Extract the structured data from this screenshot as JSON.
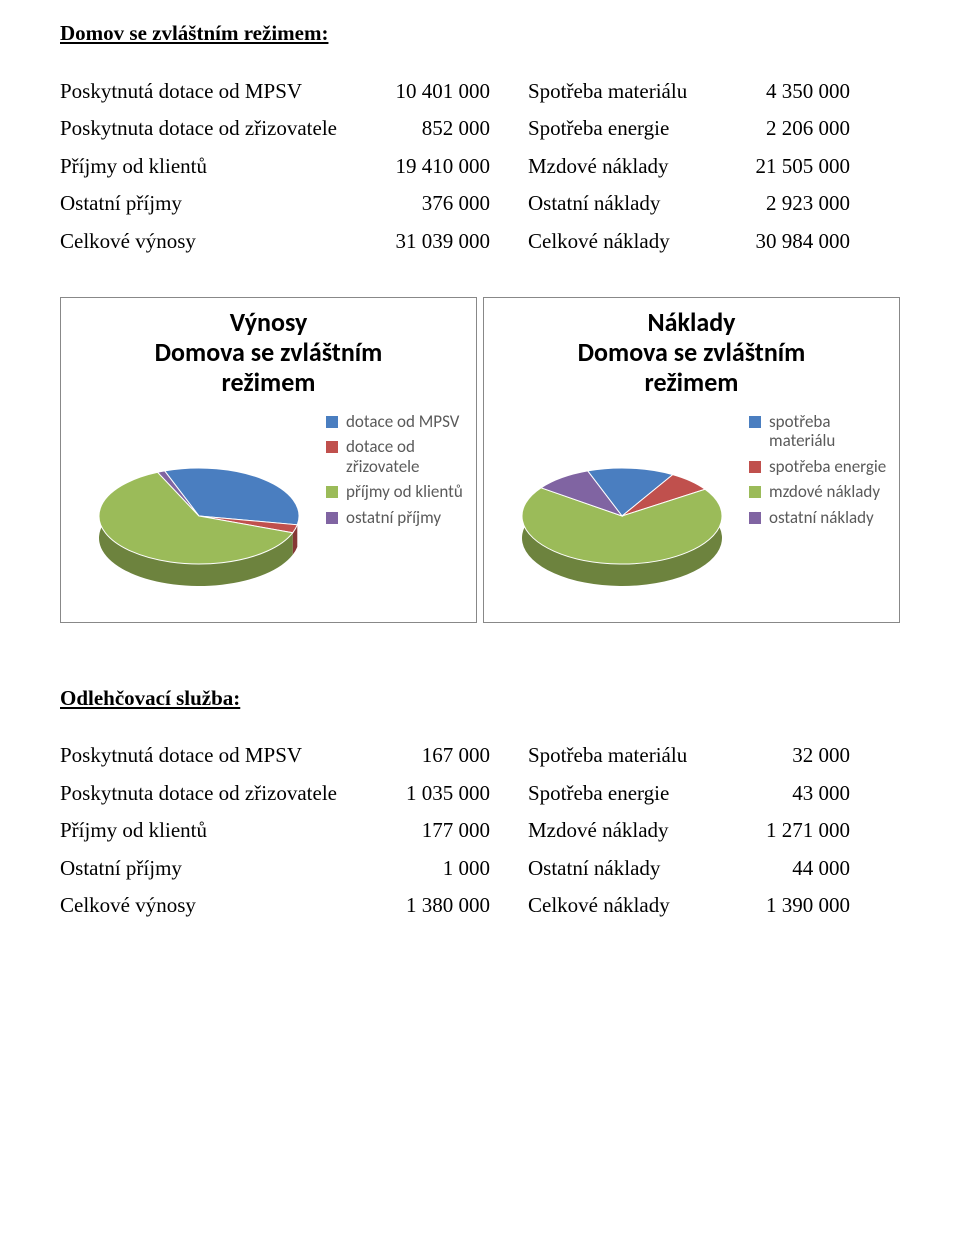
{
  "palette": {
    "blue": "#4a7ec0",
    "red": "#c0504d",
    "green": "#9bbb59",
    "purple": "#8064a2"
  },
  "section1": {
    "title": "Domov se zvláštním režimem:",
    "rows": [
      {
        "la": "Poskytnutá dotace od MPSV",
        "lb": "10 401 000",
        "sep": "",
        "ra": "Spotřeba materiálu",
        "rb": "4 350 000"
      },
      {
        "la": "Poskytnuta dotace od zřizovatele",
        "lb": "852 000",
        "sep": "",
        "ra": "Spotřeba energie",
        "rb": "2 206 000"
      },
      {
        "la": "Příjmy od klientů",
        "lb": "19 410 000",
        "ra": "Mzdové náklady",
        "rb": "21 505 000"
      },
      {
        "la": "Ostatní příjmy",
        "lb": "376 000",
        "ra": "Ostatní náklady",
        "rb": "2 923 000"
      },
      {
        "la": "Celkové výnosy",
        "lb": "31 039 000",
        "ra": "Celkové náklady",
        "rb": "30 984 000"
      }
    ]
  },
  "chart_left": {
    "title": "Výnosy\nDomova se zvláštním\nrežimem",
    "type": "pie-3d",
    "legend_font": 17,
    "title_font": 26,
    "series": [
      {
        "label": "dotace od MPSV",
        "value": 10401000,
        "color": "#4a7ec0"
      },
      {
        "label": "dotace od zřizovatele",
        "value": 852000,
        "color": "#c0504d"
      },
      {
        "label": "příjmy od klientů",
        "value": 19410000,
        "color": "#9bbb59"
      },
      {
        "label": "ostatní příjmy",
        "value": 376000,
        "color": "#8064a2"
      }
    ]
  },
  "chart_right": {
    "title": "Náklady\nDomova se zvláštním\nrežimem",
    "type": "pie-3d",
    "legend_font": 17,
    "title_font": 26,
    "series": [
      {
        "label": "spotřeba materiálu",
        "value": 4350000,
        "color": "#4a7ec0"
      },
      {
        "label": "spotřeba energie",
        "value": 2206000,
        "color": "#c0504d"
      },
      {
        "label": "mzdové náklady",
        "value": 21505000,
        "color": "#9bbb59"
      },
      {
        "label": "ostatní náklady",
        "value": 2923000,
        "color": "#8064a2"
      }
    ]
  },
  "section2": {
    "title": "Odlehčovací služba:",
    "rows": [
      {
        "la": "Poskytnutá dotace od MPSV",
        "lb": "167 000",
        "ra": "Spotřeba materiálu",
        "rb": "32 000"
      },
      {
        "la": "Poskytnuta dotace od zřizovatele",
        "lb": "1 035 000",
        "ra": "Spotřeba energie",
        "rb": "43 000"
      },
      {
        "la": "Příjmy od klientů",
        "lb": "177 000",
        "ra": "Mzdové náklady",
        "rb": "1 271 000"
      },
      {
        "la": "Ostatní příjmy",
        "lb": "1 000",
        "ra": "Ostatní náklady",
        "rb": "44 000"
      },
      {
        "la": "Celkové výnosy",
        "lb": "1 380 000",
        "ra": "Celkové náklady",
        "rb": "1 390 000"
      }
    ]
  }
}
